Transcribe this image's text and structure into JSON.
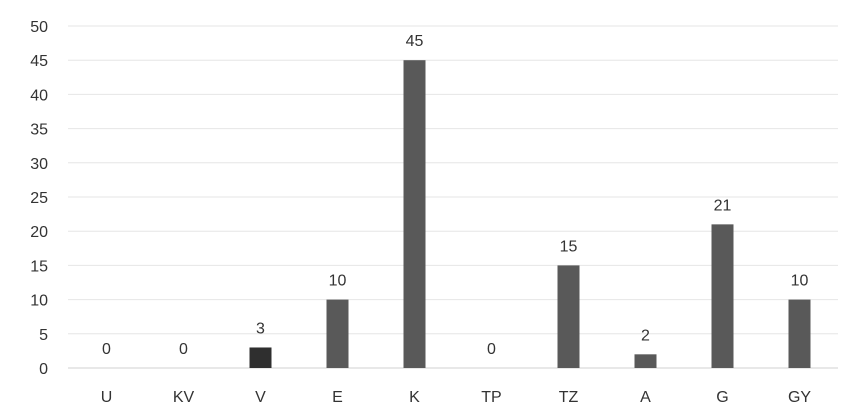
{
  "chart_data": {
    "type": "bar",
    "categories": [
      "U",
      "KV",
      "V",
      "E",
      "K",
      "TP",
      "TZ",
      "A",
      "G",
      "GY"
    ],
    "values": [
      0,
      0,
      3,
      10,
      45,
      0,
      15,
      2,
      21,
      10
    ],
    "data_labels": [
      "0",
      "0",
      "3",
      "10",
      "45",
      "0",
      "15",
      "2",
      "21",
      "10"
    ],
    "ylim": [
      0,
      50
    ],
    "y_ticks": [
      0,
      5,
      10,
      15,
      20,
      25,
      30,
      35,
      40,
      45,
      50
    ],
    "title": "",
    "xlabel": "",
    "ylabel": "",
    "grid": true,
    "legend": "none",
    "colors": {
      "bar": "#595959",
      "bar_highlight": "#2f2f2f",
      "grid": "#e6e6e6",
      "text": "#333333"
    }
  }
}
